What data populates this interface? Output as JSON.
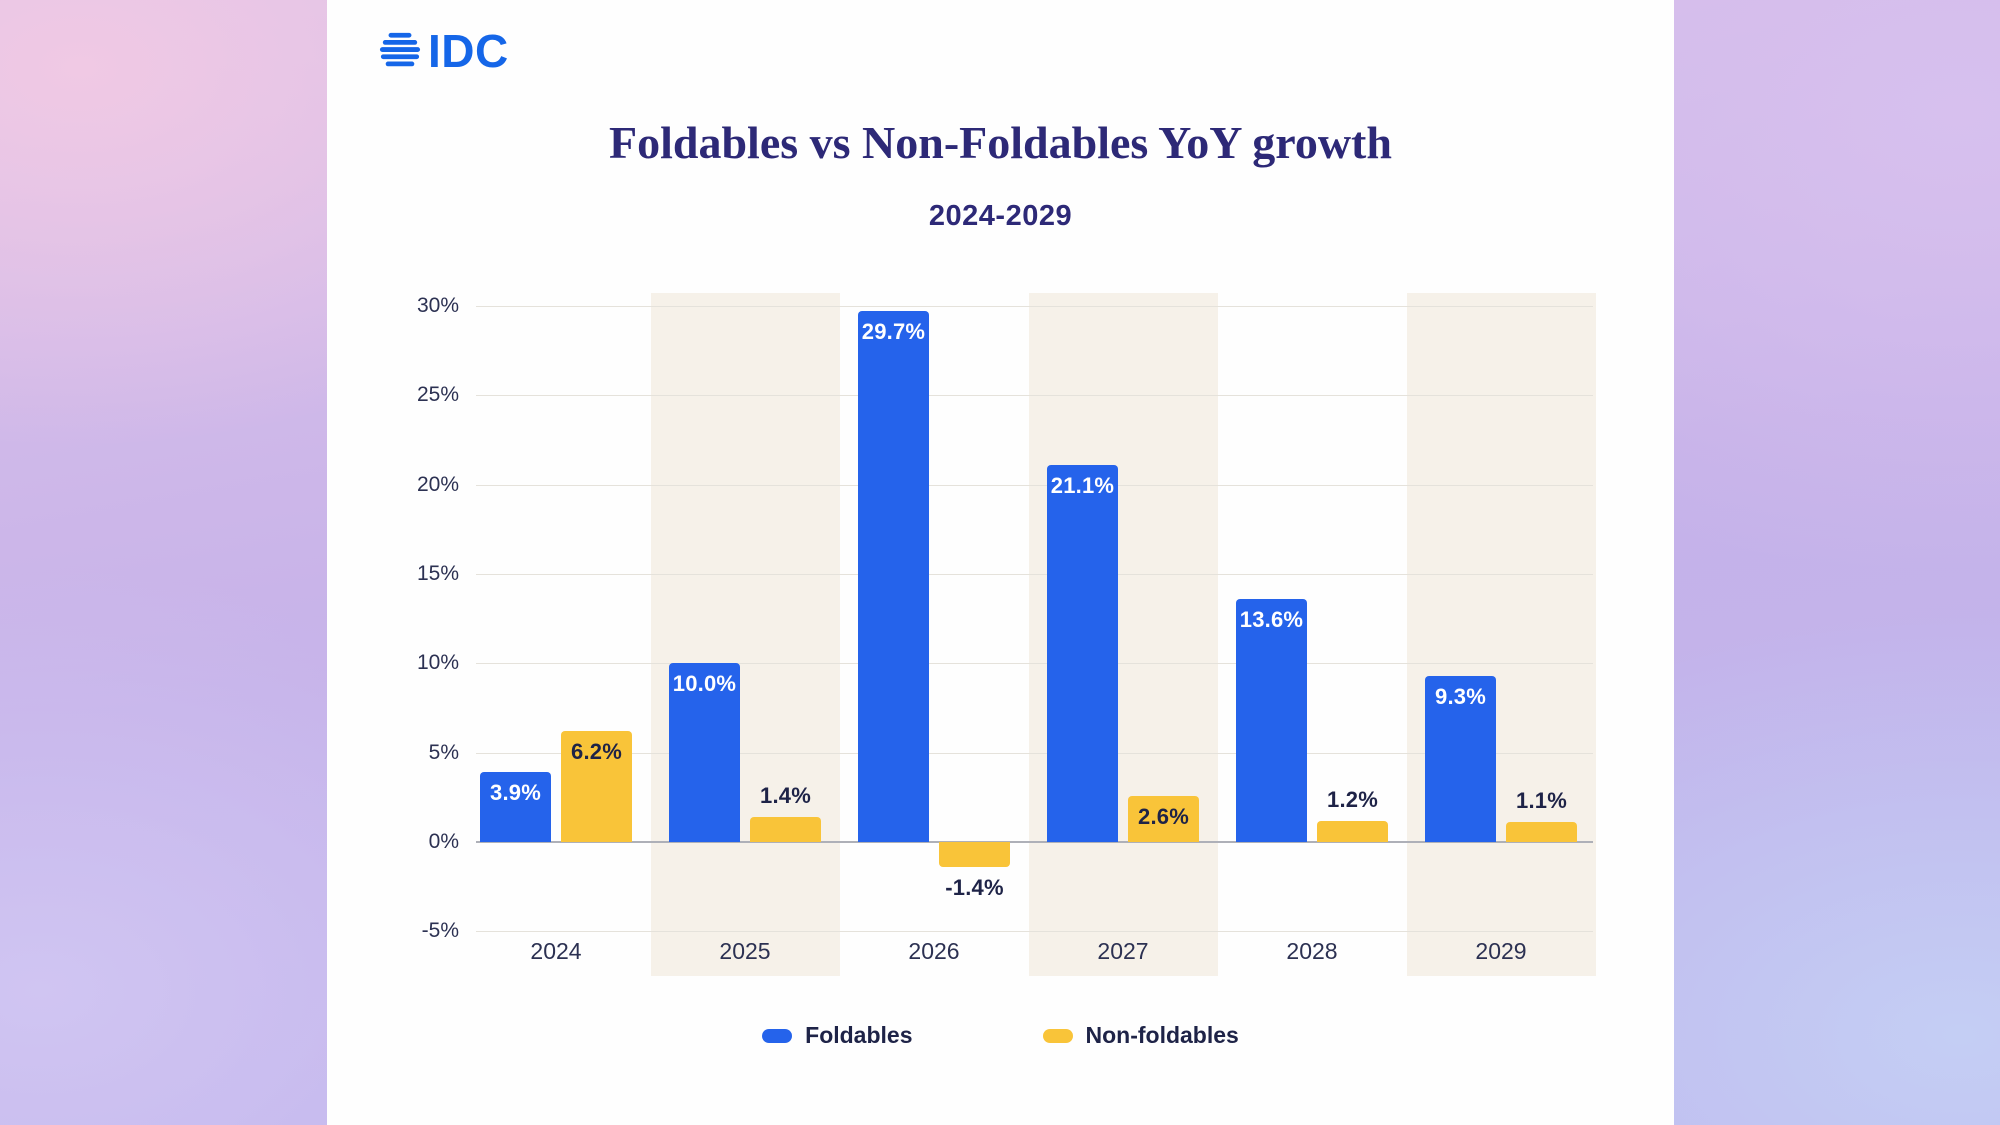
{
  "brand": {
    "name": "IDC"
  },
  "colors": {
    "logo_blue": "#1566E8",
    "title_navy": "#2D2977",
    "band_beige": "#F6F1E9",
    "foldables_blue": "#2563EB",
    "non_foldables_yellow": "#F9C439"
  },
  "chart_data": {
    "type": "bar",
    "title": "Foldables vs Non-Foldables YoY growth",
    "subtitle": "2024-2029",
    "categories": [
      "2024",
      "2025",
      "2026",
      "2027",
      "2028",
      "2029"
    ],
    "series": [
      {
        "name": "Foldables",
        "color": "#2563EB",
        "values": [
          3.9,
          10.0,
          29.7,
          21.1,
          13.6,
          9.3
        ],
        "labels": [
          "3.9%",
          "10.0%",
          "29.7%",
          "21.1%",
          "13.6%",
          "9.3%"
        ]
      },
      {
        "name": "Non-foldables",
        "color": "#F9C439",
        "values": [
          6.2,
          1.4,
          -1.4,
          2.6,
          1.2,
          1.1
        ],
        "labels": [
          "6.2%",
          "1.4%",
          "-1.4%",
          "2.6%",
          "1.2%",
          "1.1%"
        ]
      }
    ],
    "y_axis": {
      "min": -5,
      "max": 30,
      "tick_step": 5,
      "unit": "%",
      "tick_labels": [
        "30%",
        "25%",
        "20%",
        "15%",
        "10%",
        "5%",
        "0%",
        "-5%"
      ]
    },
    "banded_categories": [
      "2025",
      "2027",
      "2029"
    ],
    "grid": true,
    "legend_position": "bottom",
    "legend": [
      "Foldables",
      "Non-foldables"
    ]
  }
}
